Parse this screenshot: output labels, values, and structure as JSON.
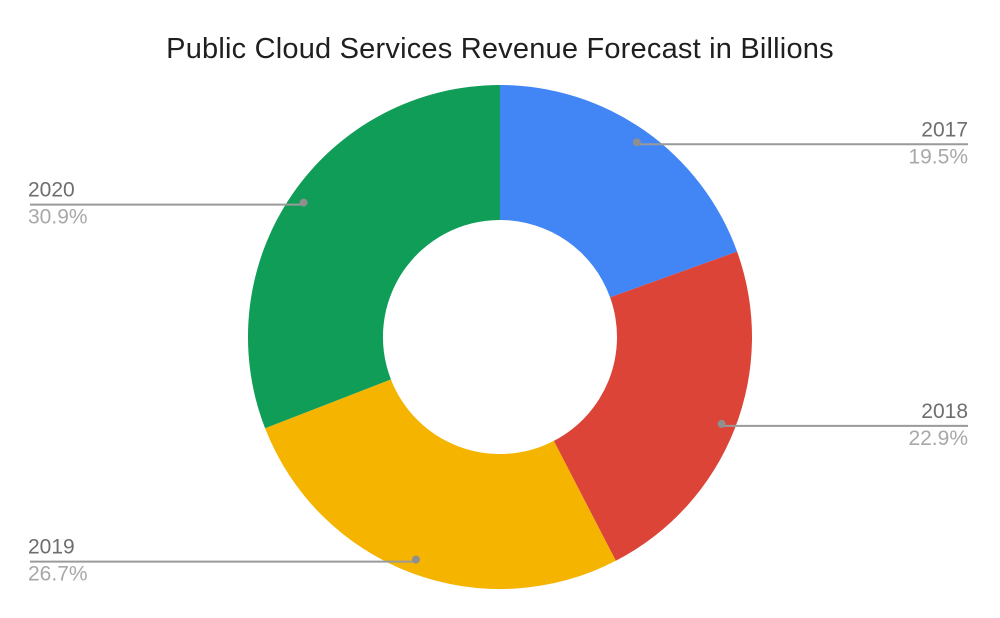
{
  "chart_data": {
    "type": "pie",
    "subtype": "donut",
    "title": "Public Cloud Services Revenue Forecast in Billions",
    "categories": [
      "2017",
      "2018",
      "2019",
      "2020"
    ],
    "values": [
      19.5,
      22.9,
      26.7,
      30.9
    ],
    "value_labels": [
      "19.5%",
      "22.9%",
      "26.7%",
      "30.9%"
    ],
    "series_colors": [
      "#4285f4",
      "#db4437",
      "#f4b400",
      "#0f9d58"
    ],
    "total": 100,
    "start_angle_deg": 0,
    "direction": "clockwise",
    "hole": true,
    "legend_position": "outside-callouts",
    "grid": false
  },
  "styles": {
    "background": "#ffffff",
    "title_color": "#1f1f1f",
    "category_label_color": "#6e6e6e",
    "percent_label_color": "#a8a8a8",
    "callout_line_color": "#9a9a9a",
    "callout_dot_color": "#8f8f8f",
    "hole_color": "#ffffff"
  }
}
